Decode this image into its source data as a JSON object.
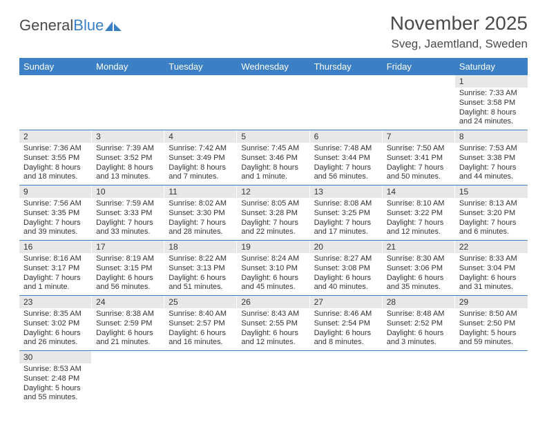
{
  "logo": {
    "text1": "General",
    "text2": "Blue"
  },
  "title": "November 2025",
  "location": "Sveg, Jaemtland, Sweden",
  "colors": {
    "header_bg": "#3b7fc4",
    "header_text": "#ffffff",
    "daynum_bg": "#e8e8e8",
    "row_border": "#3b7fc4",
    "text": "#333333"
  },
  "weekdays": [
    "Sunday",
    "Monday",
    "Tuesday",
    "Wednesday",
    "Thursday",
    "Friday",
    "Saturday"
  ],
  "weeks": [
    [
      {
        "n": "",
        "lines": [
          "",
          "",
          "",
          ""
        ]
      },
      {
        "n": "",
        "lines": [
          "",
          "",
          "",
          ""
        ]
      },
      {
        "n": "",
        "lines": [
          "",
          "",
          "",
          ""
        ]
      },
      {
        "n": "",
        "lines": [
          "",
          "",
          "",
          ""
        ]
      },
      {
        "n": "",
        "lines": [
          "",
          "",
          "",
          ""
        ]
      },
      {
        "n": "",
        "lines": [
          "",
          "",
          "",
          ""
        ]
      },
      {
        "n": "1",
        "lines": [
          "Sunrise: 7:33 AM",
          "Sunset: 3:58 PM",
          "Daylight: 8 hours",
          "and 24 minutes."
        ]
      }
    ],
    [
      {
        "n": "2",
        "lines": [
          "Sunrise: 7:36 AM",
          "Sunset: 3:55 PM",
          "Daylight: 8 hours",
          "and 18 minutes."
        ]
      },
      {
        "n": "3",
        "lines": [
          "Sunrise: 7:39 AM",
          "Sunset: 3:52 PM",
          "Daylight: 8 hours",
          "and 13 minutes."
        ]
      },
      {
        "n": "4",
        "lines": [
          "Sunrise: 7:42 AM",
          "Sunset: 3:49 PM",
          "Daylight: 8 hours",
          "and 7 minutes."
        ]
      },
      {
        "n": "5",
        "lines": [
          "Sunrise: 7:45 AM",
          "Sunset: 3:46 PM",
          "Daylight: 8 hours",
          "and 1 minute."
        ]
      },
      {
        "n": "6",
        "lines": [
          "Sunrise: 7:48 AM",
          "Sunset: 3:44 PM",
          "Daylight: 7 hours",
          "and 56 minutes."
        ]
      },
      {
        "n": "7",
        "lines": [
          "Sunrise: 7:50 AM",
          "Sunset: 3:41 PM",
          "Daylight: 7 hours",
          "and 50 minutes."
        ]
      },
      {
        "n": "8",
        "lines": [
          "Sunrise: 7:53 AM",
          "Sunset: 3:38 PM",
          "Daylight: 7 hours",
          "and 44 minutes."
        ]
      }
    ],
    [
      {
        "n": "9",
        "lines": [
          "Sunrise: 7:56 AM",
          "Sunset: 3:35 PM",
          "Daylight: 7 hours",
          "and 39 minutes."
        ]
      },
      {
        "n": "10",
        "lines": [
          "Sunrise: 7:59 AM",
          "Sunset: 3:33 PM",
          "Daylight: 7 hours",
          "and 33 minutes."
        ]
      },
      {
        "n": "11",
        "lines": [
          "Sunrise: 8:02 AM",
          "Sunset: 3:30 PM",
          "Daylight: 7 hours",
          "and 28 minutes."
        ]
      },
      {
        "n": "12",
        "lines": [
          "Sunrise: 8:05 AM",
          "Sunset: 3:28 PM",
          "Daylight: 7 hours",
          "and 22 minutes."
        ]
      },
      {
        "n": "13",
        "lines": [
          "Sunrise: 8:08 AM",
          "Sunset: 3:25 PM",
          "Daylight: 7 hours",
          "and 17 minutes."
        ]
      },
      {
        "n": "14",
        "lines": [
          "Sunrise: 8:10 AM",
          "Sunset: 3:22 PM",
          "Daylight: 7 hours",
          "and 12 minutes."
        ]
      },
      {
        "n": "15",
        "lines": [
          "Sunrise: 8:13 AM",
          "Sunset: 3:20 PM",
          "Daylight: 7 hours",
          "and 6 minutes."
        ]
      }
    ],
    [
      {
        "n": "16",
        "lines": [
          "Sunrise: 8:16 AM",
          "Sunset: 3:17 PM",
          "Daylight: 7 hours",
          "and 1 minute."
        ]
      },
      {
        "n": "17",
        "lines": [
          "Sunrise: 8:19 AM",
          "Sunset: 3:15 PM",
          "Daylight: 6 hours",
          "and 56 minutes."
        ]
      },
      {
        "n": "18",
        "lines": [
          "Sunrise: 8:22 AM",
          "Sunset: 3:13 PM",
          "Daylight: 6 hours",
          "and 51 minutes."
        ]
      },
      {
        "n": "19",
        "lines": [
          "Sunrise: 8:24 AM",
          "Sunset: 3:10 PM",
          "Daylight: 6 hours",
          "and 45 minutes."
        ]
      },
      {
        "n": "20",
        "lines": [
          "Sunrise: 8:27 AM",
          "Sunset: 3:08 PM",
          "Daylight: 6 hours",
          "and 40 minutes."
        ]
      },
      {
        "n": "21",
        "lines": [
          "Sunrise: 8:30 AM",
          "Sunset: 3:06 PM",
          "Daylight: 6 hours",
          "and 35 minutes."
        ]
      },
      {
        "n": "22",
        "lines": [
          "Sunrise: 8:33 AM",
          "Sunset: 3:04 PM",
          "Daylight: 6 hours",
          "and 31 minutes."
        ]
      }
    ],
    [
      {
        "n": "23",
        "lines": [
          "Sunrise: 8:35 AM",
          "Sunset: 3:02 PM",
          "Daylight: 6 hours",
          "and 26 minutes."
        ]
      },
      {
        "n": "24",
        "lines": [
          "Sunrise: 8:38 AM",
          "Sunset: 2:59 PM",
          "Daylight: 6 hours",
          "and 21 minutes."
        ]
      },
      {
        "n": "25",
        "lines": [
          "Sunrise: 8:40 AM",
          "Sunset: 2:57 PM",
          "Daylight: 6 hours",
          "and 16 minutes."
        ]
      },
      {
        "n": "26",
        "lines": [
          "Sunrise: 8:43 AM",
          "Sunset: 2:55 PM",
          "Daylight: 6 hours",
          "and 12 minutes."
        ]
      },
      {
        "n": "27",
        "lines": [
          "Sunrise: 8:46 AM",
          "Sunset: 2:54 PM",
          "Daylight: 6 hours",
          "and 8 minutes."
        ]
      },
      {
        "n": "28",
        "lines": [
          "Sunrise: 8:48 AM",
          "Sunset: 2:52 PM",
          "Daylight: 6 hours",
          "and 3 minutes."
        ]
      },
      {
        "n": "29",
        "lines": [
          "Sunrise: 8:50 AM",
          "Sunset: 2:50 PM",
          "Daylight: 5 hours",
          "and 59 minutes."
        ]
      }
    ],
    [
      {
        "n": "30",
        "lines": [
          "Sunrise: 8:53 AM",
          "Sunset: 2:48 PM",
          "Daylight: 5 hours",
          "and 55 minutes."
        ]
      },
      {
        "n": "",
        "lines": [
          "",
          "",
          "",
          ""
        ]
      },
      {
        "n": "",
        "lines": [
          "",
          "",
          "",
          ""
        ]
      },
      {
        "n": "",
        "lines": [
          "",
          "",
          "",
          ""
        ]
      },
      {
        "n": "",
        "lines": [
          "",
          "",
          "",
          ""
        ]
      },
      {
        "n": "",
        "lines": [
          "",
          "",
          "",
          ""
        ]
      },
      {
        "n": "",
        "lines": [
          "",
          "",
          "",
          ""
        ]
      }
    ]
  ]
}
